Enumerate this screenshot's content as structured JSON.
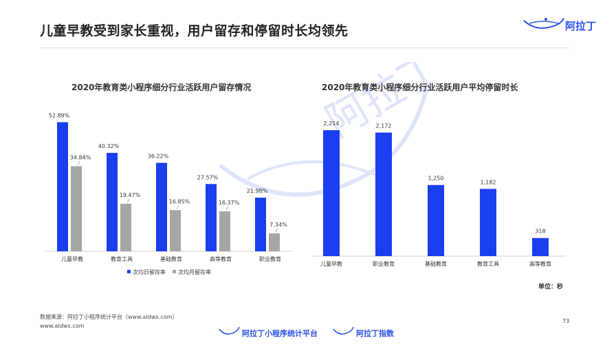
{
  "page": {
    "title": "儿童早教受到家长重视，用户留存和停留时长均领先",
    "brand": "阿拉丁",
    "source": "数据来源：阿拉丁小程序统计平台（www.aldwx.com）",
    "site": "www.aldwx.com",
    "page_number": "73",
    "footer_left": "阿拉丁小程序统计平台",
    "footer_right": "阿拉丁指数",
    "watermark": "阿拉丁",
    "colors": {
      "primary": "#1a3ef0",
      "secondary": "#a6a6a6",
      "brand": "#2b52e8"
    }
  },
  "chart_data": [
    {
      "type": "bar",
      "title": "2020年教育类小程序细分行业活跃用户留存情况",
      "categories": [
        "儿童早教",
        "教育工具",
        "基础教育",
        "高等教育",
        "职业教育"
      ],
      "series": [
        {
          "name": "次均日留存率",
          "values": [
            52.89,
            40.32,
            36.22,
            27.57,
            21.98
          ],
          "labels": [
            "52.89%",
            "40.32%",
            "36.22%",
            "27.57%",
            "21.98%"
          ],
          "color": "#1a3ef0"
        },
        {
          "name": "次均月留存率",
          "values": [
            34.84,
            19.47,
            16.85,
            16.37,
            7.34
          ],
          "labels": [
            "34.84%",
            "19.47%",
            "16.85%",
            "16.37%",
            "7.34%"
          ],
          "color": "#a6a6a6"
        }
      ],
      "ylim": [
        0,
        55
      ],
      "legend": "bottom",
      "grid": false
    },
    {
      "type": "bar",
      "title": "2020年教育类小程序细分行业活跃用户平均停留时长",
      "categories": [
        "儿童早教",
        "职业教育",
        "基础教育",
        "教育工具",
        "高等教育"
      ],
      "series": [
        {
          "values": [
            2214,
            2172,
            1250,
            1182,
            318
          ],
          "labels": [
            "2,214",
            "2,172",
            "1,250",
            "1,182",
            "318"
          ],
          "color": "#1a3ef0"
        }
      ],
      "ylim": [
        0,
        2300
      ],
      "unit_label": "单位：秒",
      "grid": false
    }
  ]
}
